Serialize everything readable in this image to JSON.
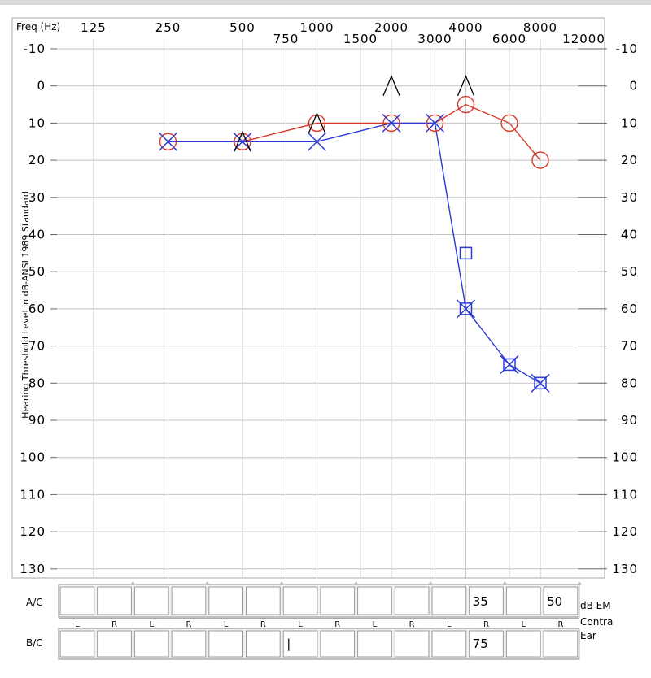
{
  "chart_data": {
    "type": "line",
    "title": "",
    "xlabel": "Freq (Hz)",
    "ylabel": "Hearing Threshold Level in dB-ANSI 1989 Standard",
    "x_scale": "log2 (octave)",
    "xlim": [
      125,
      12000
    ],
    "ylim": [
      -10,
      130
    ],
    "y_inverted": true,
    "grid": true,
    "x_ticks_top": [
      "125",
      "250",
      "500",
      "1000",
      "2000",
      "4000",
      "8000"
    ],
    "x_ticks_bottom": [
      "750",
      "1500",
      "3000",
      "6000",
      "12000"
    ],
    "y_ticks": [
      "-10",
      "0",
      "10",
      "20",
      "30",
      "40",
      "50",
      "60",
      "70",
      "80",
      "90",
      "100",
      "110",
      "120",
      "130"
    ],
    "series": [
      {
        "color": "#d83a2a",
        "marker": "circle",
        "points": [
          [
            250,
            15
          ],
          [
            500,
            15
          ],
          [
            1000,
            10
          ],
          [
            2000,
            10
          ],
          [
            3000,
            10
          ],
          [
            4000,
            5
          ],
          [
            6000,
            10
          ],
          [
            8000,
            20
          ]
        ]
      },
      {
        "color": "#2a3ad8",
        "marker": "x",
        "points": [
          [
            250,
            15
          ],
          [
            500,
            15
          ],
          [
            1000,
            15
          ],
          [
            2000,
            10
          ],
          [
            3000,
            10
          ],
          [
            4000,
            60
          ],
          [
            6000,
            75
          ],
          [
            8000,
            80
          ]
        ]
      }
    ],
    "bone_markers": [
      {
        "symbol": "^",
        "color": "#000000",
        "points": [
          [
            500,
            15
          ],
          [
            1000,
            10
          ],
          [
            2000,
            0
          ],
          [
            4000,
            0
          ]
        ]
      },
      {
        "symbol": "square",
        "color": "#2a3ad8",
        "points": [
          [
            4000,
            45
          ],
          [
            4000,
            60
          ],
          [
            6000,
            75
          ],
          [
            8000,
            80
          ]
        ]
      }
    ]
  },
  "masking_table": {
    "rows": [
      {
        "label": "A/C",
        "values": [
          "",
          "",
          "",
          "",
          "",
          "",
          "",
          "",
          "",
          "",
          "",
          "35",
          "",
          "50"
        ]
      },
      {
        "label": "B/C",
        "values": [
          "",
          "",
          "",
          "",
          "",
          "",
          "|",
          "",
          "",
          "",
          "",
          "75",
          "",
          ""
        ]
      }
    ],
    "ear_labels": [
      "L",
      "R",
      "L",
      "R",
      "L",
      "R",
      "L",
      "R",
      "L",
      "R",
      "L",
      "R",
      "L",
      "R"
    ],
    "right_caption": [
      "dB EM",
      "Contra",
      "Ear"
    ]
  }
}
